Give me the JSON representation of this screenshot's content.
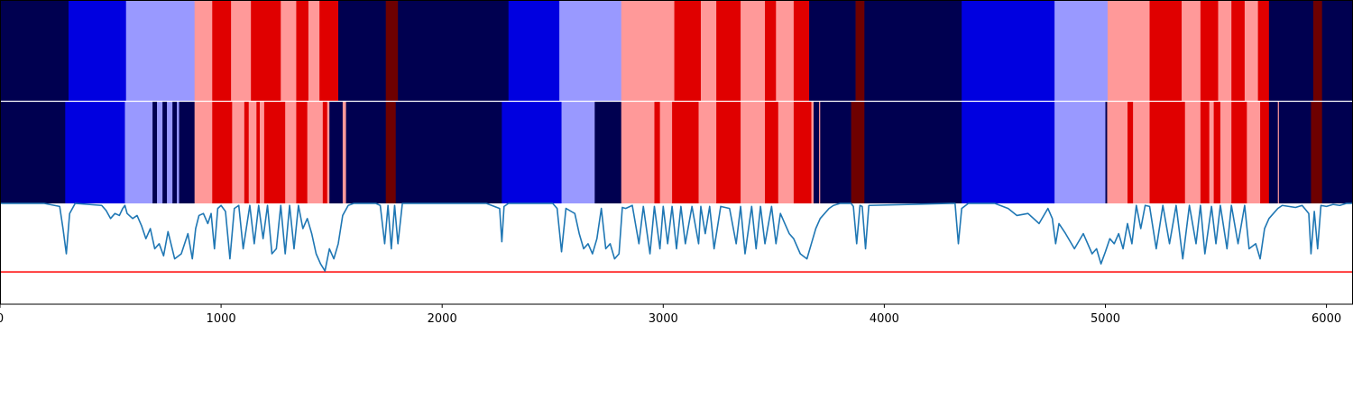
{
  "colors": {
    "navy": "#000050",
    "blue": "#0000e0",
    "lavender": "#9999ff",
    "pink": "#ff9999",
    "red": "#e00000",
    "darkred": "#6e0000",
    "line": "#1f77b4",
    "threshold": "#ff0000"
  },
  "chart_data": {
    "type": "area",
    "xlim": [
      0,
      6120
    ],
    "xticks": [
      0,
      1000,
      2000,
      3000,
      4000,
      5000,
      6000
    ],
    "tick_labels": [
      "0",
      "1000",
      "2000",
      "3000",
      "4000",
      "5000",
      "6000"
    ],
    "ylim": [
      0,
      1
    ],
    "threshold": 0.32,
    "bands": [
      {
        "name": "",
        "segments": [
          [
            0,
            310,
            "navy"
          ],
          [
            310,
            570,
            "blue"
          ],
          [
            570,
            880,
            "lavender"
          ],
          [
            880,
            960,
            "pink"
          ],
          [
            960,
            1045,
            "red"
          ],
          [
            1045,
            1135,
            "pink"
          ],
          [
            1135,
            1270,
            "red"
          ],
          [
            1270,
            1340,
            "pink"
          ],
          [
            1340,
            1395,
            "red"
          ],
          [
            1395,
            1445,
            "pink"
          ],
          [
            1445,
            1530,
            "red"
          ],
          [
            1530,
            1745,
            "navy"
          ],
          [
            1745,
            1800,
            "darkred"
          ],
          [
            1800,
            2300,
            "navy"
          ],
          [
            2300,
            2530,
            "blue"
          ],
          [
            2530,
            2810,
            "lavender"
          ],
          [
            2810,
            3050,
            "pink"
          ],
          [
            3050,
            3170,
            "red"
          ],
          [
            3170,
            3240,
            "pink"
          ],
          [
            3240,
            3350,
            "red"
          ],
          [
            3350,
            3460,
            "pink"
          ],
          [
            3460,
            3510,
            "red"
          ],
          [
            3510,
            3590,
            "pink"
          ],
          [
            3590,
            3660,
            "red"
          ],
          [
            3660,
            3870,
            "navy"
          ],
          [
            3870,
            3910,
            "darkred"
          ],
          [
            3910,
            4350,
            "navy"
          ],
          [
            4350,
            4770,
            "blue"
          ],
          [
            4770,
            5010,
            "lavender"
          ],
          [
            5010,
            5200,
            "pink"
          ],
          [
            5200,
            5345,
            "red"
          ],
          [
            5345,
            5430,
            "pink"
          ],
          [
            5430,
            5510,
            "red"
          ],
          [
            5510,
            5570,
            "pink"
          ],
          [
            5570,
            5630,
            "red"
          ],
          [
            5630,
            5690,
            "pink"
          ],
          [
            5690,
            5740,
            "red"
          ],
          [
            5740,
            5940,
            "navy"
          ],
          [
            5940,
            5980,
            "darkred"
          ],
          [
            5980,
            6120,
            "navy"
          ]
        ]
      },
      {
        "name": "",
        "segments": [
          [
            0,
            295,
            "navy"
          ],
          [
            295,
            565,
            "blue"
          ],
          [
            565,
            690,
            "lavender"
          ],
          [
            690,
            710,
            "navy"
          ],
          [
            710,
            735,
            "lavender"
          ],
          [
            735,
            755,
            "navy"
          ],
          [
            755,
            780,
            "lavender"
          ],
          [
            780,
            800,
            "navy"
          ],
          [
            800,
            810,
            "lavender"
          ],
          [
            810,
            880,
            "navy"
          ],
          [
            880,
            960,
            "pink"
          ],
          [
            960,
            1050,
            "red"
          ],
          [
            1050,
            1105,
            "pink"
          ],
          [
            1105,
            1125,
            "red"
          ],
          [
            1125,
            1160,
            "pink"
          ],
          [
            1160,
            1175,
            "red"
          ],
          [
            1175,
            1195,
            "pink"
          ],
          [
            1195,
            1290,
            "red"
          ],
          [
            1290,
            1340,
            "pink"
          ],
          [
            1340,
            1390,
            "red"
          ],
          [
            1390,
            1460,
            "pink"
          ],
          [
            1460,
            1480,
            "red"
          ],
          [
            1480,
            1490,
            "pink"
          ],
          [
            1490,
            1550,
            "navy"
          ],
          [
            1550,
            1565,
            "pink"
          ],
          [
            1565,
            1745,
            "navy"
          ],
          [
            1745,
            1790,
            "darkred"
          ],
          [
            1790,
            2270,
            "navy"
          ],
          [
            2270,
            2540,
            "blue"
          ],
          [
            2540,
            2690,
            "lavender"
          ],
          [
            2690,
            2810,
            "navy"
          ],
          [
            2810,
            2960,
            "pink"
          ],
          [
            2960,
            2985,
            "red"
          ],
          [
            2985,
            3040,
            "pink"
          ],
          [
            3040,
            3160,
            "red"
          ],
          [
            3160,
            3240,
            "pink"
          ],
          [
            3240,
            3350,
            "red"
          ],
          [
            3350,
            3460,
            "pink"
          ],
          [
            3460,
            3520,
            "red"
          ],
          [
            3520,
            3590,
            "pink"
          ],
          [
            3590,
            3670,
            "red"
          ],
          [
            3670,
            3680,
            "pink"
          ],
          [
            3680,
            3705,
            "navy"
          ],
          [
            3705,
            3710,
            "pink"
          ],
          [
            3710,
            3850,
            "navy"
          ],
          [
            3850,
            3910,
            "darkred"
          ],
          [
            3910,
            4350,
            "navy"
          ],
          [
            4350,
            4770,
            "blue"
          ],
          [
            4770,
            5000,
            "lavender"
          ],
          [
            5000,
            5008,
            "navy"
          ],
          [
            5008,
            5100,
            "pink"
          ],
          [
            5100,
            5125,
            "red"
          ],
          [
            5125,
            5200,
            "pink"
          ],
          [
            5200,
            5360,
            "red"
          ],
          [
            5360,
            5430,
            "pink"
          ],
          [
            5430,
            5470,
            "red"
          ],
          [
            5470,
            5490,
            "pink"
          ],
          [
            5490,
            5520,
            "red"
          ],
          [
            5520,
            5570,
            "pink"
          ],
          [
            5570,
            5640,
            "red"
          ],
          [
            5640,
            5700,
            "pink"
          ],
          [
            5700,
            5740,
            "red"
          ],
          [
            5740,
            5780,
            "navy"
          ],
          [
            5780,
            5785,
            "pink"
          ],
          [
            5785,
            5930,
            "navy"
          ],
          [
            5930,
            5980,
            "darkred"
          ],
          [
            5980,
            6120,
            "navy"
          ]
        ]
      }
    ],
    "series": [
      {
        "name": "",
        "x": [
          0,
          200,
          270,
          285,
          300,
          315,
          340,
          460,
          480,
          500,
          520,
          540,
          555,
          565,
          575,
          600,
          620,
          640,
          660,
          680,
          700,
          720,
          740,
          760,
          790,
          820,
          850,
          870,
          885,
          900,
          920,
          940,
          955,
          970,
          985,
          1000,
          1020,
          1040,
          1060,
          1080,
          1100,
          1130,
          1150,
          1170,
          1190,
          1210,
          1230,
          1250,
          1270,
          1290,
          1310,
          1330,
          1350,
          1370,
          1390,
          1410,
          1430,
          1450,
          1470,
          1490,
          1510,
          1530,
          1550,
          1575,
          1600,
          1700,
          1720,
          1740,
          1755,
          1770,
          1785,
          1800,
          1820,
          2200,
          2260,
          2270,
          2280,
          2300,
          2500,
          2520,
          2540,
          2560,
          2600,
          2620,
          2640,
          2660,
          2680,
          2700,
          2720,
          2740,
          2760,
          2780,
          2800,
          2815,
          2830,
          2860,
          2890,
          2910,
          2940,
          2960,
          2985,
          3000,
          3020,
          3040,
          3060,
          3080,
          3100,
          3130,
          3160,
          3170,
          3190,
          3210,
          3230,
          3260,
          3300,
          3330,
          3350,
          3370,
          3400,
          3420,
          3440,
          3460,
          3490,
          3510,
          3530,
          3550,
          3570,
          3590,
          3620,
          3650,
          3670,
          3690,
          3710,
          3730,
          3750,
          3770,
          3800,
          3850,
          3860,
          3875,
          3890,
          3900,
          3915,
          3930,
          4300,
          4320,
          4335,
          4350,
          4380,
          4500,
          4560,
          4600,
          4650,
          4700,
          4740,
          4760,
          4775,
          4790,
          4820,
          4860,
          4900,
          4940,
          4960,
          4980,
          5000,
          5020,
          5040,
          5060,
          5080,
          5100,
          5120,
          5140,
          5160,
          5180,
          5200,
          5230,
          5260,
          5290,
          5320,
          5350,
          5380,
          5410,
          5430,
          5450,
          5480,
          5500,
          5520,
          5550,
          5570,
          5600,
          5630,
          5650,
          5680,
          5700,
          5720,
          5740,
          5760,
          5780,
          5800,
          5830,
          5860,
          5890,
          5920,
          5930,
          5945,
          5960,
          5975,
          6000,
          6030,
          6060,
          6090,
          6120
        ],
        "y": [
          1.0,
          1.0,
          0.97,
          0.75,
          0.5,
          0.9,
          1.0,
          0.98,
          0.93,
          0.85,
          0.9,
          0.88,
          0.95,
          0.98,
          0.9,
          0.85,
          0.88,
          0.78,
          0.65,
          0.75,
          0.55,
          0.6,
          0.48,
          0.72,
          0.45,
          0.5,
          0.7,
          0.45,
          0.75,
          0.88,
          0.9,
          0.8,
          0.9,
          0.55,
          0.95,
          0.98,
          0.92,
          0.45,
          0.95,
          0.98,
          0.55,
          0.98,
          0.6,
          0.98,
          0.65,
          0.98,
          0.5,
          0.55,
          0.98,
          0.5,
          0.98,
          0.55,
          0.98,
          0.75,
          0.85,
          0.7,
          0.5,
          0.4,
          0.33,
          0.55,
          0.45,
          0.6,
          0.88,
          0.98,
          1.0,
          1.0,
          0.98,
          0.6,
          0.98,
          0.55,
          0.98,
          0.6,
          1.0,
          1.0,
          0.95,
          0.62,
          0.97,
          1.0,
          1.0,
          0.95,
          0.52,
          0.95,
          0.9,
          0.7,
          0.55,
          0.6,
          0.5,
          0.65,
          0.95,
          0.55,
          0.6,
          0.45,
          0.5,
          0.96,
          0.95,
          0.98,
          0.6,
          0.97,
          0.5,
          0.97,
          0.55,
          0.97,
          0.6,
          0.97,
          0.55,
          0.97,
          0.6,
          0.97,
          0.6,
          0.97,
          0.7,
          0.97,
          0.55,
          0.97,
          0.95,
          0.6,
          0.97,
          0.5,
          0.97,
          0.55,
          0.97,
          0.6,
          0.97,
          0.6,
          0.9,
          0.8,
          0.7,
          0.65,
          0.5,
          0.45,
          0.6,
          0.75,
          0.85,
          0.9,
          0.95,
          0.98,
          1.0,
          1.0,
          0.97,
          0.6,
          0.98,
          0.97,
          0.55,
          0.98,
          1.0,
          1.0,
          0.6,
          0.95,
          1.0,
          1.0,
          0.95,
          0.88,
          0.9,
          0.8,
          0.95,
          0.85,
          0.6,
          0.8,
          0.7,
          0.55,
          0.7,
          0.5,
          0.55,
          0.4,
          0.52,
          0.65,
          0.6,
          0.7,
          0.55,
          0.8,
          0.6,
          0.98,
          0.75,
          0.98,
          0.97,
          0.55,
          0.98,
          0.6,
          0.98,
          0.45,
          0.98,
          0.6,
          0.98,
          0.5,
          0.97,
          0.6,
          0.98,
          0.55,
          0.98,
          0.6,
          0.98,
          0.55,
          0.6,
          0.45,
          0.75,
          0.85,
          0.9,
          0.95,
          0.98,
          0.97,
          0.96,
          0.98,
          0.9,
          0.5,
          0.92,
          0.55,
          0.98,
          0.97,
          0.99,
          0.98,
          1.0,
          1.0
        ]
      }
    ]
  }
}
